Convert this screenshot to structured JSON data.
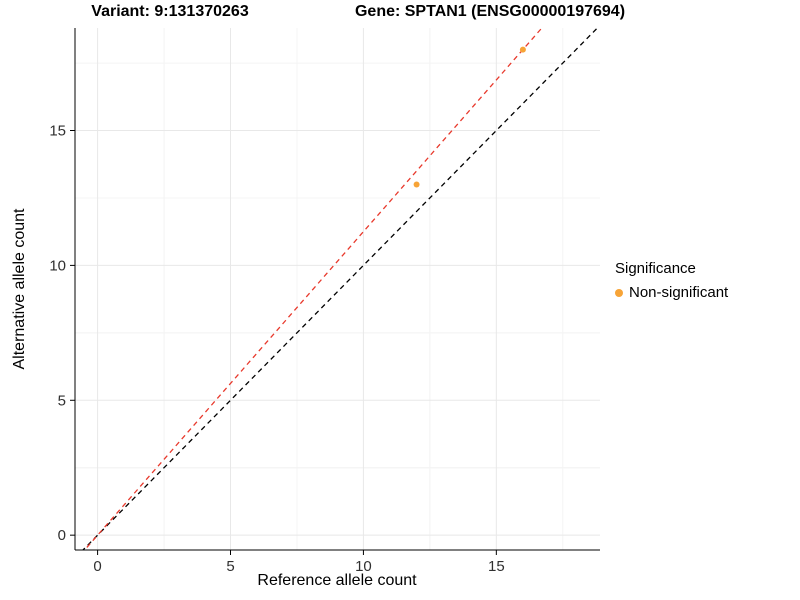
{
  "titles": {
    "variant": "Variant: 9:131370263",
    "gene": "Gene: SPTAN1 (ENSG00000197694)"
  },
  "chart_data": {
    "type": "scatter",
    "title_left": "Variant: 9:131370263",
    "title_right": "Gene: SPTAN1 (ENSG00000197694)",
    "xlabel": "Reference allele count",
    "ylabel": "Alternative allele count",
    "xlim": [
      -0.85,
      18.9
    ],
    "ylim": [
      -0.55,
      18.8
    ],
    "xticks": [
      0,
      5,
      10,
      15
    ],
    "yticks": [
      0,
      5,
      10,
      15
    ],
    "minor_step": 2.5,
    "grid": true,
    "series": [
      {
        "name": "Non-significant",
        "color": "#f7a437",
        "points": [
          {
            "x": 12,
            "y": 13
          },
          {
            "x": 16,
            "y": 18
          }
        ]
      }
    ],
    "lines": [
      {
        "name": "identity-line",
        "slope": 1,
        "intercept": 0,
        "color": "#000000",
        "dash": "5,4"
      },
      {
        "name": "fit-line",
        "slope": 1.125,
        "intercept": 0,
        "color": "#e8392c",
        "dash": "5,4"
      }
    ],
    "legend": {
      "title": "Significance",
      "position": "right",
      "entries": [
        {
          "label": "Non-significant",
          "color": "#f7a437"
        }
      ]
    },
    "colors": {
      "major_grid": "#e8e8e8",
      "minor_grid": "#f4f4f4",
      "axis_line": "#000000",
      "tick_label": "#303030"
    }
  }
}
